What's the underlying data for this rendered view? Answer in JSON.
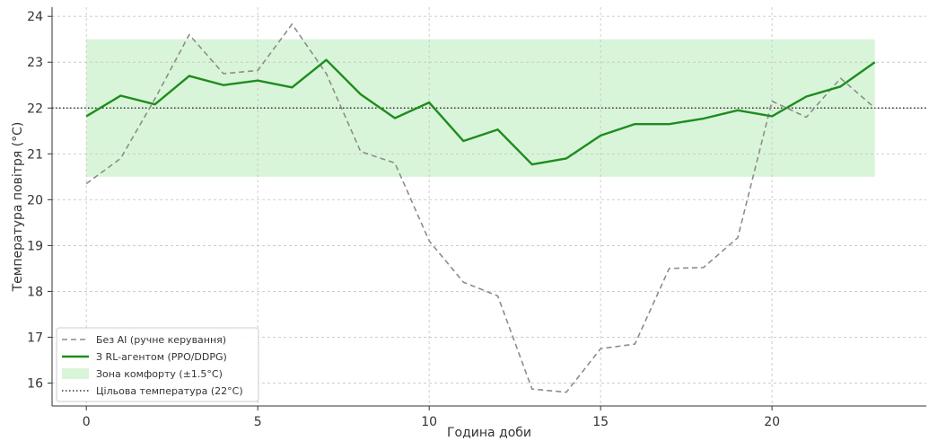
{
  "chart_data": {
    "type": "line",
    "title": "",
    "xlabel": "Година доби",
    "ylabel": "Температура повітря (°C)",
    "xlim": [
      -1.0,
      24.5
    ],
    "ylim": [
      15.5,
      24.2
    ],
    "x_ticks": [
      0,
      5,
      10,
      15,
      20
    ],
    "y_ticks": [
      16,
      17,
      18,
      19,
      20,
      21,
      22,
      23,
      24
    ],
    "grid": true,
    "legend_position": "lower-left",
    "x": [
      0,
      1,
      2,
      3,
      4,
      5,
      6,
      7,
      8,
      9,
      10,
      11,
      12,
      13,
      14,
      15,
      16,
      17,
      18,
      19,
      20,
      21,
      22,
      23
    ],
    "series": [
      {
        "name": "Без AI (ручне керування)",
        "style": "dashed",
        "color": "#8c8c8c",
        "values": [
          20.35,
          20.9,
          22.2,
          23.6,
          22.75,
          22.82,
          23.83,
          22.75,
          21.05,
          20.8,
          19.1,
          18.2,
          17.9,
          15.87,
          15.8,
          16.75,
          16.85,
          18.5,
          18.52,
          19.17,
          22.15,
          21.8,
          22.65,
          22.0
        ]
      },
      {
        "name": "З RL-агентом (PPO/DDPG)",
        "style": "solid",
        "color": "#1e8c1e",
        "values": [
          21.82,
          22.27,
          22.08,
          22.7,
          22.5,
          22.6,
          22.45,
          23.05,
          22.3,
          21.78,
          22.12,
          21.28,
          21.53,
          20.77,
          20.9,
          21.4,
          21.65,
          21.65,
          21.77,
          21.95,
          21.82,
          22.25,
          22.47,
          23.0
        ]
      }
    ],
    "comfort_zone": {
      "name": "Зона комфорту (±1.5°C)",
      "y_min": 20.5,
      "y_max": 23.5,
      "x_min": 0,
      "x_max": 23,
      "color": "#d9f5d9"
    },
    "target_line": {
      "name": "Цільова температура (22°C)",
      "y": 22,
      "style": "dotted",
      "color": "#333333"
    }
  }
}
